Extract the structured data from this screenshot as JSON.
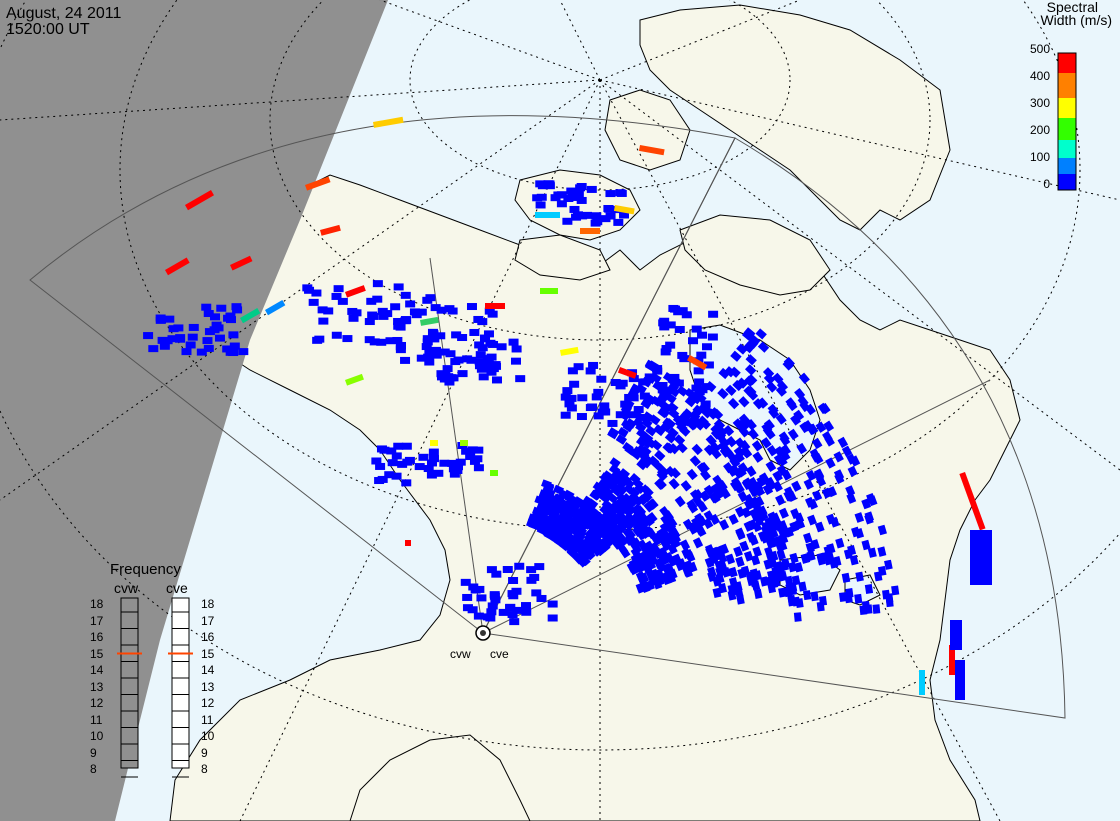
{
  "header": {
    "date": "August, 24 2011",
    "time": "1520:00 UT"
  },
  "colorbar": {
    "title_line1": "Spectral",
    "title_line2": "Width (m/s)",
    "ticks": [
      "500",
      "400",
      "300",
      "200",
      "100",
      "0"
    ],
    "colors": [
      "#ff0000",
      "#ff8000",
      "#ffff00",
      "#33ff00",
      "#00ffcc",
      "#0080ff",
      "#0000ff"
    ]
  },
  "radars": [
    {
      "code": "cvw",
      "label": "cvw"
    },
    {
      "code": "cve",
      "label": "cve"
    }
  ],
  "frequency": {
    "title": "Frequency",
    "left_label": "cvw",
    "right_label": "cve",
    "scale": [
      "18",
      "17",
      "16",
      "15",
      "14",
      "13",
      "12",
      "11",
      "10",
      "9",
      "8"
    ],
    "cvw_value": 15,
    "cve_value": 15,
    "marker_color": "#ff4400"
  },
  "map_colors": {
    "night": "#909090",
    "ocean": "#eaf6fc",
    "land": "#f7f7ea",
    "coast": "#000000"
  }
}
